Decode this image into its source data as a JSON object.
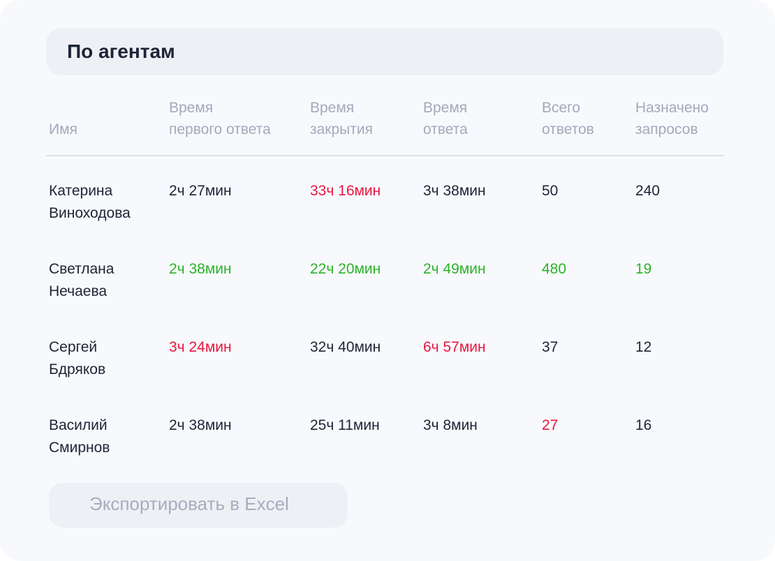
{
  "section": {
    "title": "По агентам"
  },
  "table": {
    "headers": {
      "name": [
        "",
        "Имя"
      ],
      "first_response": [
        "Время",
        "первого ответа"
      ],
      "close_time": [
        "Время",
        "закрытия"
      ],
      "response_time": [
        "Время",
        "ответа"
      ],
      "total_answers": [
        "Всего",
        "ответов"
      ],
      "assigned": [
        "Назначено",
        "запросов"
      ]
    },
    "rows": [
      {
        "name": [
          "Катерина",
          "Виноходова"
        ],
        "first_response": "2ч 27мин",
        "close_time": "33ч 16мин",
        "response_time": "3ч 38мин",
        "total_answers": "50",
        "assigned": "240"
      },
      {
        "name": [
          "Светлана",
          "Нечаева"
        ],
        "first_response": "2ч 38мин",
        "close_time": "22ч 20мин",
        "response_time": "2ч 49мин",
        "total_answers": "480",
        "assigned": "19"
      },
      {
        "name": [
          "Сергей",
          "Бдряков"
        ],
        "first_response": "3ч 24мин",
        "close_time": "32ч 40мин",
        "response_time": "6ч 57мин",
        "total_answers": "37",
        "assigned": "12"
      },
      {
        "name": [
          "Василий",
          "Смирнов"
        ],
        "first_response": "2ч 38мин",
        "close_time": "25ч 11мин",
        "response_time": "3ч 8мин",
        "total_answers": "27",
        "assigned": "16"
      }
    ]
  },
  "export": {
    "label": "Экспортировать в Excel"
  },
  "colors": {
    "text": "#1f2436",
    "muted": "#a4a9bb",
    "bad": "#e8173f",
    "good": "#2ab32a",
    "panel": "#eef0f5",
    "background": "#f8f9fc"
  }
}
